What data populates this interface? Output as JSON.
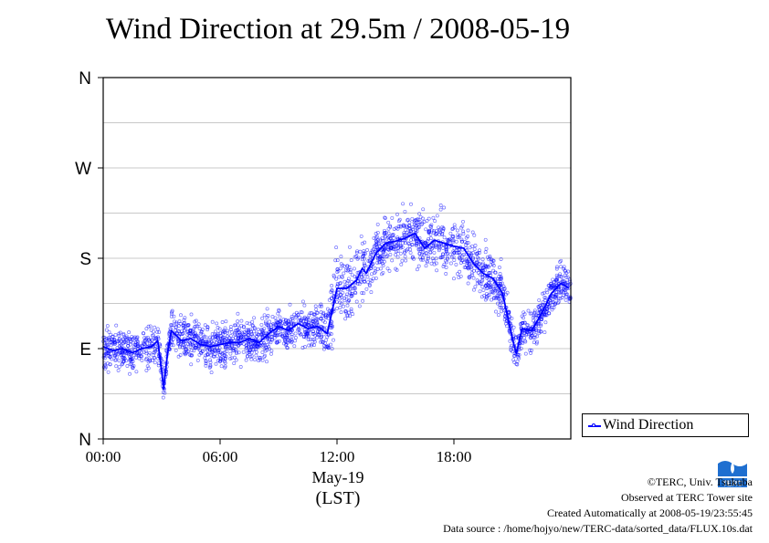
{
  "title": "Wind Direction at 29.5m / 2008-05-19",
  "chart_data": {
    "type": "scatter",
    "title": "Wind Direction at 29.5m / 2008-05-19",
    "xlabel": "(LST)",
    "x_date_label": "May-19",
    "ylabel": "",
    "x_unit": "hours",
    "xlim": [
      0,
      24
    ],
    "ylim": [
      0,
      360
    ],
    "x_ticks": [
      {
        "value": 0,
        "label": "00:00"
      },
      {
        "value": 6,
        "label": "06:00"
      },
      {
        "value": 12,
        "label": "12:00"
      },
      {
        "value": 18,
        "label": "18:00"
      }
    ],
    "y_ticks": [
      {
        "value": 0,
        "label": "N"
      },
      {
        "value": 90,
        "label": "E"
      },
      {
        "value": 180,
        "label": "S"
      },
      {
        "value": 270,
        "label": "W"
      },
      {
        "value": 360,
        "label": "N"
      }
    ],
    "y_minor_gridlines": [
      45,
      135,
      225,
      315
    ],
    "grid": true,
    "legend_position": "bottom-right outside",
    "series": [
      {
        "name": "Wind Direction",
        "color": "#0000ff",
        "style": "line with scatter points",
        "x": [
          0.0,
          0.5,
          1.0,
          1.5,
          2.0,
          2.5,
          2.8,
          3.0,
          3.1,
          3.3,
          3.5,
          3.8,
          4.0,
          4.5,
          5.0,
          5.5,
          6.0,
          6.5,
          7.0,
          7.5,
          8.0,
          8.5,
          9.0,
          9.5,
          10.0,
          10.5,
          11.0,
          11.5,
          12.0,
          12.5,
          13.0,
          13.3,
          13.5,
          14.0,
          14.5,
          15.0,
          15.5,
          16.0,
          16.5,
          17.0,
          17.5,
          18.0,
          18.5,
          19.0,
          19.5,
          20.0,
          20.5,
          21.0,
          21.2,
          21.5,
          22.0,
          22.5,
          23.0,
          23.5,
          23.9
        ],
        "y": [
          92,
          88,
          90,
          86,
          90,
          92,
          98,
          68,
          50,
          85,
          108,
          102,
          98,
          100,
          94,
          92,
          94,
          96,
          96,
          100,
          96,
          105,
          112,
          108,
          115,
          110,
          112,
          105,
          150,
          150,
          158,
          170,
          165,
          185,
          195,
          197,
          200,
          205,
          190,
          198,
          195,
          192,
          190,
          175,
          165,
          160,
          145,
          100,
          85,
          110,
          108,
          125,
          145,
          155,
          150
        ]
      }
    ]
  },
  "legend": {
    "label": "Wind Direction"
  },
  "axis": {
    "date_label": "May-19",
    "tz_label": "(LST)"
  },
  "credits": {
    "line1": "©TERC, Univ. Tsukuba",
    "line2": "Observed at TERC Tower site",
    "line3": "Created Automatically at 2008-05-19/23:55:45",
    "line4": "Data source : /home/hojyo/new/TERC-data/sorted_data/FLUX.10s.dat"
  },
  "logo": {
    "text": "TERC",
    "color": "#1f6fd0"
  }
}
